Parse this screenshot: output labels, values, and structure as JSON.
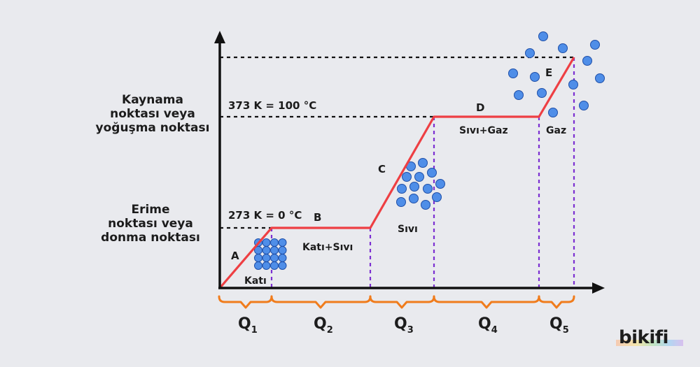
{
  "labels": {
    "boiling_point": [
      "Kaynama",
      "noktası veya",
      "yoğuşma noktası"
    ],
    "melting_point": [
      "Erime",
      "noktası veya",
      "donma noktası"
    ],
    "temp_boiling": "373 K = 100 °C",
    "temp_melting": "273 K = 0 °C"
  },
  "segments": {
    "A": "A",
    "B": "B",
    "C": "C",
    "D": "D",
    "E": "E"
  },
  "phases": {
    "solid": "Katı",
    "solid_liquid": "Katı+Sıvı",
    "liquid": "Sıvı",
    "liquid_gas": "Sıvı+Gaz",
    "gas": "Gaz"
  },
  "heats": [
    {
      "base": "Q",
      "sub": "1"
    },
    {
      "base": "Q",
      "sub": "2"
    },
    {
      "base": "Q",
      "sub": "3"
    },
    {
      "base": "Q",
      "sub": "4"
    },
    {
      "base": "Q",
      "sub": "5"
    }
  ],
  "logo": "bikifi",
  "colors": {
    "curve": "#ee3f43",
    "guide": "#7b2fd1",
    "brace": "#f07c1c",
    "particle": "#4f8ee8",
    "particle_stroke": "#1f4fa8",
    "axis": "#111111"
  }
}
